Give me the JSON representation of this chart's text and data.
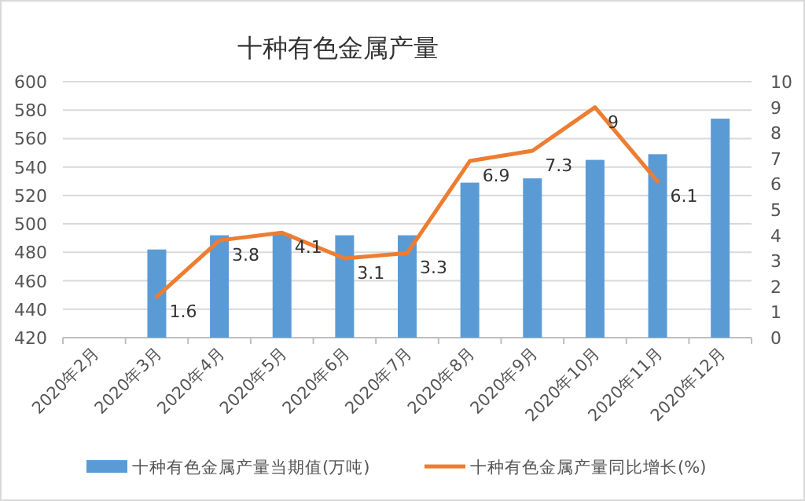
{
  "chart_data": {
    "type": "bar",
    "title": "十种有色金属产量",
    "categories": [
      "2020年2月",
      "2020年3月",
      "2020年4月",
      "2020年5月",
      "2020年6月",
      "2020年7月",
      "2020年8月",
      "2020年9月",
      "2020年10月",
      "2020年11月",
      "2020年12月"
    ],
    "series": [
      {
        "name": "十种有色金属产量当期值(万吨)",
        "axis": "y",
        "color": "#5b9bd5",
        "values": [
          null,
          482,
          492,
          493,
          492,
          492,
          529,
          532,
          545,
          549,
          574
        ]
      },
      {
        "name": "十种有色金属产量同比增长(%)",
        "type": "line",
        "axis": "y2",
        "color": "#ed7d31",
        "line_style": "solid",
        "marker": "none",
        "values": [
          null,
          1.6,
          3.8,
          4.1,
          3.1,
          3.3,
          6.9,
          7.3,
          9,
          6.1,
          null
        ],
        "value_labels": [
          null,
          "1.6",
          "3.8",
          "4.1",
          "3.1",
          "3.3",
          "6.9",
          "7.3",
          "9",
          "6.1",
          null
        ]
      }
    ],
    "ylim": [
      420,
      600
    ],
    "yticks": [
      420,
      440,
      460,
      480,
      500,
      520,
      540,
      560,
      580,
      600
    ],
    "y2lim": [
      0,
      10
    ],
    "y2ticks": [
      0,
      1,
      2,
      3,
      4,
      5,
      6,
      7,
      8,
      9,
      10
    ],
    "grid": "y",
    "legend": "bottom"
  }
}
